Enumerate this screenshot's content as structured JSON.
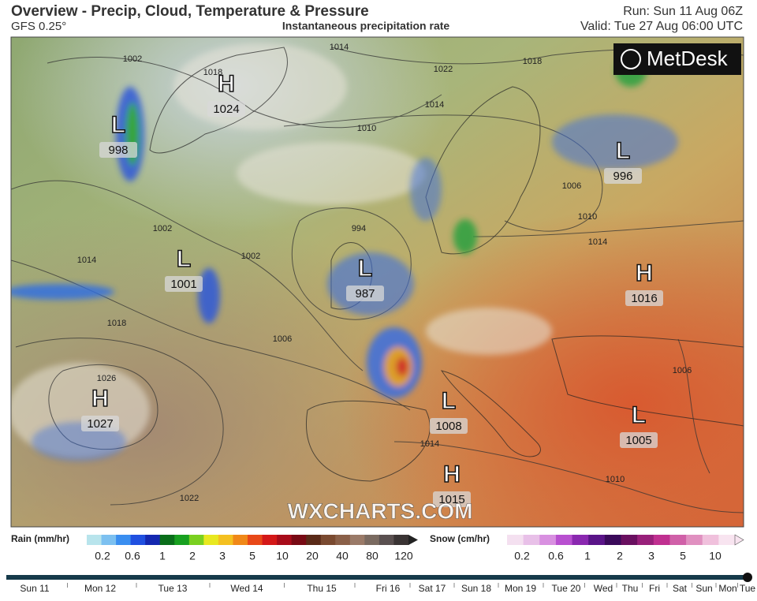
{
  "header": {
    "title": "Overview - Precip, Cloud, Temperature & Pressure",
    "model": "GFS 0.25°",
    "subtitle": "Instantaneous precipitation rate",
    "run": "Run: Sun 11 Aug 06Z",
    "valid": "Valid: Tue 27 Aug 06:00 UTC"
  },
  "map": {
    "logo": "MetDesk",
    "watermark": "WXCHARTS.COM",
    "centers": [
      {
        "type": "L",
        "pressure": "998"
      },
      {
        "type": "H",
        "pressure": "1024"
      },
      {
        "type": "L",
        "pressure": "996"
      },
      {
        "type": "L",
        "pressure": "1001"
      },
      {
        "type": "L",
        "pressure": "987"
      },
      {
        "type": "H",
        "pressure": "1016"
      },
      {
        "type": "H",
        "pressure": "1027"
      },
      {
        "type": "L",
        "pressure": "1008"
      },
      {
        "type": "L",
        "pressure": "1005"
      },
      {
        "type": "H",
        "pressure": "1015"
      }
    ],
    "isobar_labels": [
      "1002",
      "1018",
      "1014",
      "1022",
      "1014",
      "1010",
      "1018",
      "1006",
      "1010",
      "1014",
      "1002",
      "1014",
      "1018",
      "1002",
      "994",
      "1006",
      "1026",
      "1022",
      "1014",
      "1010",
      "1006"
    ]
  },
  "legend": {
    "rain": {
      "label": "Rain (mm/hr)",
      "ticks": [
        "0.2",
        "0.6",
        "1",
        "2",
        "3",
        "5",
        "10",
        "20",
        "40",
        "80",
        "120"
      ]
    },
    "snow": {
      "label": "Snow (cm/hr)",
      "ticks": [
        "0.2",
        "0.6",
        "1",
        "2",
        "3",
        "5",
        "10"
      ]
    }
  },
  "timeline": {
    "days": [
      "Sun 11",
      "Mon 12",
      "Tue 13",
      "Wed 14",
      "Thu 15",
      "Fri 16",
      "Sat 17",
      "Sun 18",
      "Mon 19",
      "Tue 20",
      "Wed",
      "Thu",
      "Fri",
      "Sat",
      "Sun",
      "Mon",
      "Tue"
    ]
  }
}
